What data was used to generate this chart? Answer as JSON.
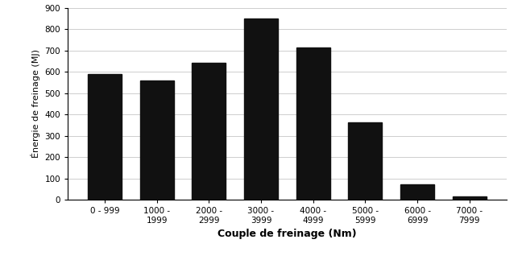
{
  "categories": [
    "0 - 999",
    "1000 -\n1999",
    "2000 -\n2999",
    "3000 -\n3999",
    "4000 -\n4999",
    "5000 -\n5999",
    "6000 -\n6999",
    "7000 -\n7999"
  ],
  "values": [
    590,
    557,
    642,
    850,
    715,
    362,
    73,
    17
  ],
  "bar_color": "#111111",
  "ylabel": "Énergie de freinage (MJ)",
  "xlabel": "Couple de freinage (Nm)",
  "ylim": [
    0,
    900
  ],
  "yticks": [
    0,
    100,
    200,
    300,
    400,
    500,
    600,
    700,
    800,
    900
  ],
  "background_color": "#ffffff",
  "bar_width": 0.65,
  "grid_color": "#bbbbbb",
  "xlabel_fontsize": 9,
  "ylabel_fontsize": 8,
  "tick_fontsize": 7.5
}
